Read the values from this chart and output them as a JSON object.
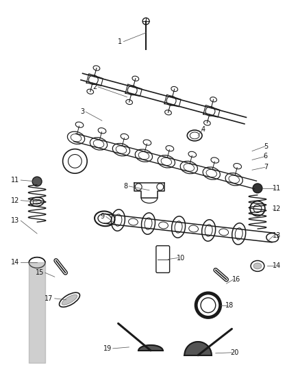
{
  "bg_color": "#ffffff",
  "fig_width": 4.38,
  "fig_height": 5.33,
  "line_color": "#1a1a1a",
  "label_color": "#111111",
  "font_size": 7.0,
  "dpi": 100
}
